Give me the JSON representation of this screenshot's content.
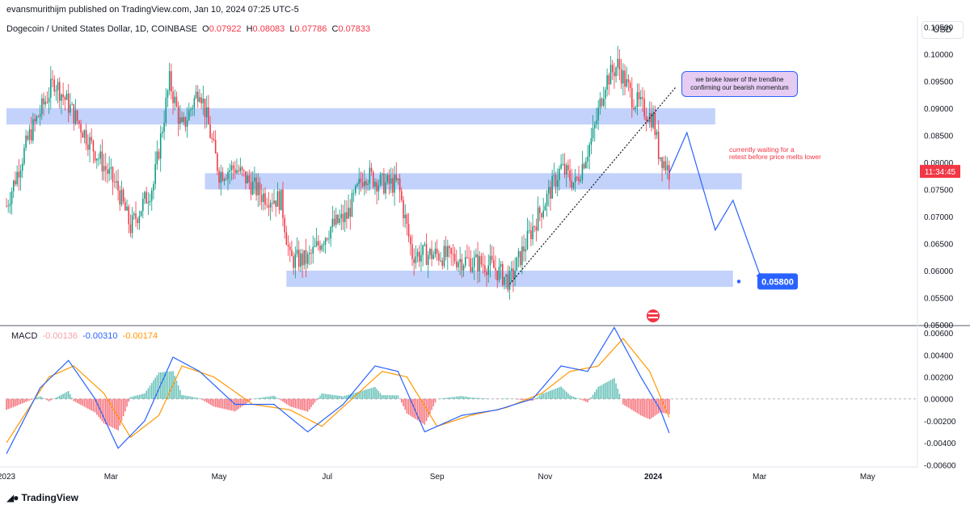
{
  "published": "evansmurithijm published on TradingView.com, Jan 10, 2024 07:25 UTC-5",
  "header": {
    "symbol": "Dogecoin / United States Dollar, 1D, COINBASE",
    "o_label": "O",
    "o_val": "0.07922",
    "h_label": "H",
    "h_val": "0.08083",
    "l_label": "L",
    "l_val": "0.07786",
    "c_label": "C",
    "c_val": "0.07833"
  },
  "currency": "USD",
  "annotations": {
    "callout": [
      "we broke lower of the trendline",
      "confirming our bearish momentum"
    ],
    "waiting": [
      "currently waiting for a",
      "retest before price melts lower"
    ],
    "target": "0.05800",
    "last_price_time": "11:34:45"
  },
  "macd_legend": {
    "label": "MACD",
    "hist": "-0.00136",
    "macd": "-0.00310",
    "signal": "-0.00174"
  },
  "footer_brand": "TradingView",
  "colors": {
    "up": "#089981",
    "down": "#f23645",
    "zone": "#bbcdfb",
    "macd": "#2962ff",
    "signal": "#ff9800"
  },
  "chart_data": [
    {
      "type": "candlestick",
      "title": "Dogecoin / United States Dollar, 1D, COINBASE",
      "y_ticks": [
        "0.10500",
        "0.10000",
        "0.09500",
        "0.09000",
        "0.08500",
        "0.08000",
        "0.07500",
        "0.07000",
        "0.06500",
        "0.06000",
        "0.05500",
        "0.05000"
      ],
      "ylim": [
        0.05,
        0.107
      ],
      "x_ticks": [
        "2023",
        "Mar",
        "May",
        "Jul",
        "Sep",
        "Nov",
        "2024",
        "Mar",
        "May"
      ],
      "x_range": [
        "2023-01-01",
        "2024-05-20"
      ],
      "close_path": [
        [
          "2023-01-01",
          0.072
        ],
        [
          "2023-01-14",
          0.085
        ],
        [
          "2023-01-28",
          0.095
        ],
        [
          "2023-02-06",
          0.09
        ],
        [
          "2023-02-20",
          0.082
        ],
        [
          "2023-03-05",
          0.075
        ],
        [
          "2023-03-12",
          0.068
        ],
        [
          "2023-03-25",
          0.076
        ],
        [
          "2023-04-03",
          0.095
        ],
        [
          "2023-04-10",
          0.086
        ],
        [
          "2023-04-20",
          0.094
        ],
        [
          "2023-05-01",
          0.078
        ],
        [
          "2023-05-10",
          0.079
        ],
        [
          "2023-05-25",
          0.074
        ],
        [
          "2023-06-05",
          0.073
        ],
        [
          "2023-06-10",
          0.062
        ],
        [
          "2023-06-20",
          0.062
        ],
        [
          "2023-07-03",
          0.068
        ],
        [
          "2023-07-12",
          0.07
        ],
        [
          "2023-07-22",
          0.078
        ],
        [
          "2023-08-01",
          0.076
        ],
        [
          "2023-08-10",
          0.076
        ],
        [
          "2023-08-18",
          0.063
        ],
        [
          "2023-09-01",
          0.063
        ],
        [
          "2023-09-15",
          0.062
        ],
        [
          "2023-10-01",
          0.061
        ],
        [
          "2023-10-12",
          0.058
        ],
        [
          "2023-10-25",
          0.068
        ],
        [
          "2023-11-10",
          0.079
        ],
        [
          "2023-11-18",
          0.076
        ],
        [
          "2023-11-28",
          0.085
        ],
        [
          "2023-12-05",
          0.095
        ],
        [
          "2023-12-12",
          0.098
        ],
        [
          "2023-12-20",
          0.092
        ],
        [
          "2024-01-01",
          0.088
        ],
        [
          "2024-01-04",
          0.082
        ],
        [
          "2024-01-10",
          0.0783
        ]
      ],
      "zones": [
        {
          "from": "2023-01-01",
          "to": "2024-02-05",
          "low": 0.087,
          "high": 0.09
        },
        {
          "from": "2023-04-23",
          "to": "2024-02-20",
          "low": 0.075,
          "high": 0.078
        },
        {
          "from": "2023-06-08",
          "to": "2024-02-15",
          "low": 0.057,
          "high": 0.06
        }
      ],
      "trendline": [
        [
          "2023-10-12",
          0.0575
        ],
        [
          "2024-01-14",
          0.094
        ]
      ],
      "projection": [
        [
          "2024-01-10",
          0.078
        ],
        [
          "2024-01-20",
          0.0855
        ],
        [
          "2024-02-05",
          0.0675
        ],
        [
          "2024-02-15",
          0.073
        ],
        [
          "2024-03-02",
          0.0585
        ]
      ],
      "target_price": 0.058,
      "last_price": 0.07833
    },
    {
      "type": "macd",
      "y_ticks": [
        "0.00600",
        "0.00400",
        "0.00200",
        "0.00000",
        "-0.00200",
        "-0.00400",
        "-0.00600"
      ],
      "ylim": [
        -0.0062,
        0.0066
      ],
      "macd": [
        [
          "2023-01-01",
          -0.005
        ],
        [
          "2023-01-20",
          0.001
        ],
        [
          "2023-02-05",
          0.0035
        ],
        [
          "2023-02-20",
          0.0
        ],
        [
          "2023-03-05",
          -0.0045
        ],
        [
          "2023-03-20",
          -0.002
        ],
        [
          "2023-04-05",
          0.0038
        ],
        [
          "2023-04-20",
          0.0025
        ],
        [
          "2023-05-10",
          -0.0005
        ],
        [
          "2023-06-01",
          -0.0005
        ],
        [
          "2023-06-20",
          -0.003
        ],
        [
          "2023-07-10",
          -0.0005
        ],
        [
          "2023-07-28",
          0.003
        ],
        [
          "2023-08-10",
          0.0025
        ],
        [
          "2023-08-25",
          -0.003
        ],
        [
          "2023-09-15",
          -0.0015
        ],
        [
          "2023-10-05",
          -0.001
        ],
        [
          "2023-10-25",
          0.0
        ],
        [
          "2023-11-10",
          0.003
        ],
        [
          "2023-11-25",
          0.0025
        ],
        [
          "2023-12-10",
          0.0065
        ],
        [
          "2023-12-25",
          0.002
        ],
        [
          "2024-01-05",
          -0.001
        ],
        [
          "2024-01-10",
          -0.0031
        ]
      ],
      "signal": [
        [
          "2023-01-01",
          -0.004
        ],
        [
          "2023-01-25",
          0.002
        ],
        [
          "2023-02-08",
          0.003
        ],
        [
          "2023-02-25",
          0.0005
        ],
        [
          "2023-03-12",
          -0.0035
        ],
        [
          "2023-03-28",
          -0.0015
        ],
        [
          "2023-04-10",
          0.003
        ],
        [
          "2023-04-28",
          0.002
        ],
        [
          "2023-05-20",
          -0.0005
        ],
        [
          "2023-06-10",
          -0.001
        ],
        [
          "2023-06-28",
          -0.0025
        ],
        [
          "2023-07-15",
          0.0
        ],
        [
          "2023-08-01",
          0.0025
        ],
        [
          "2023-08-15",
          0.002
        ],
        [
          "2023-09-01",
          -0.0025
        ],
        [
          "2023-09-20",
          -0.0015
        ],
        [
          "2023-10-10",
          -0.0008
        ],
        [
          "2023-10-30",
          0.0005
        ],
        [
          "2023-11-15",
          0.0025
        ],
        [
          "2023-12-01",
          0.003
        ],
        [
          "2023-12-15",
          0.0055
        ],
        [
          "2023-12-30",
          0.0025
        ],
        [
          "2024-01-10",
          -0.0017
        ]
      ]
    }
  ]
}
